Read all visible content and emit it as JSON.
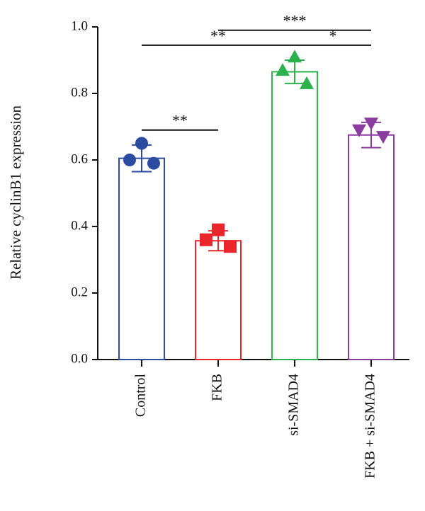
{
  "chart_data": {
    "type": "bar",
    "ylabel": "Relative cyclinB1 expression",
    "ylim": [
      0,
      1.0
    ],
    "yticks": [
      0.0,
      0.2,
      0.4,
      0.6,
      0.8,
      1.0
    ],
    "ytick_labels": [
      "0.0",
      "0.2",
      "0.4",
      "0.6",
      "0.8",
      "1.0"
    ],
    "grid": false,
    "groups": [
      {
        "label": "Control",
        "mean": 0.605,
        "sd": 0.04,
        "color": "#2B4BA0",
        "marker": "circle",
        "points": [
          0.65,
          0.6,
          0.59
        ]
      },
      {
        "label": "FKB",
        "mean": 0.357,
        "sd": 0.03,
        "color": "#E8262B",
        "marker": "square",
        "points": [
          0.39,
          0.36,
          0.34
        ]
      },
      {
        "label": "si-SMAD4",
        "mean": 0.865,
        "sd": 0.035,
        "color": "#2BB24C",
        "marker": "triangle-up",
        "points": [
          0.91,
          0.87,
          0.83
        ]
      },
      {
        "label": "FKB + si-SMAD4",
        "mean": 0.675,
        "sd": 0.038,
        "color": "#8A3C9F",
        "marker": "triangle-down",
        "points": [
          0.71,
          0.69,
          0.67
        ]
      }
    ],
    "significance": [
      {
        "from": 0,
        "to": 1,
        "y": 0.69,
        "label": "**"
      },
      {
        "from": 0,
        "to": 2,
        "y": 0.945,
        "label": "**"
      },
      {
        "from": 2,
        "to": 3,
        "y": 0.945,
        "label": "*"
      },
      {
        "from": 1,
        "to": 3,
        "y": 0.99,
        "label": "***"
      }
    ]
  }
}
